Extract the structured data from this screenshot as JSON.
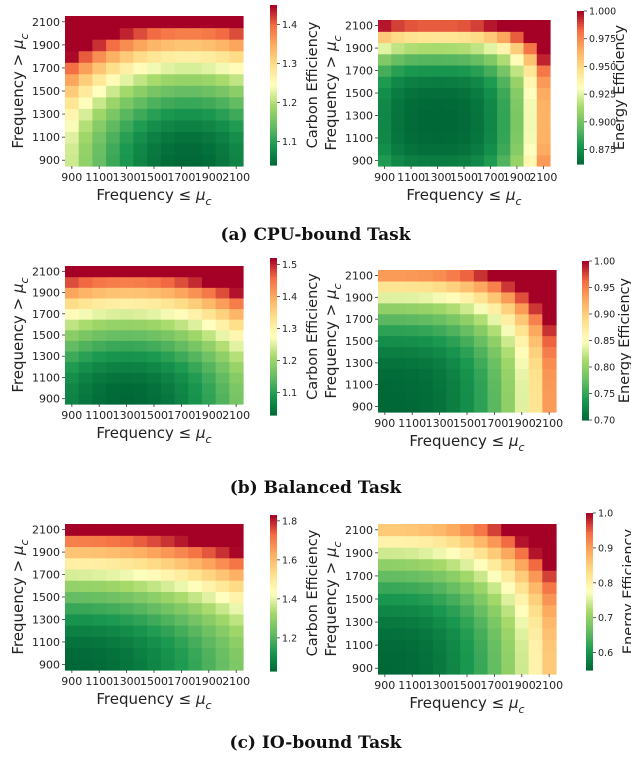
{
  "captions": [
    "(a) CPU-bound Task",
    "(b) Balanced Task",
    "(c) IO-bound Task"
  ],
  "chart_data": [
    {
      "type": "heatmap",
      "panel": "a-left",
      "xlabel": "Frequency $\\leq\\mu_c$",
      "ylabel": "Frequency > $\\mu_c$",
      "x": [
        900,
        1000,
        1100,
        1200,
        1300,
        1400,
        1500,
        1600,
        1700,
        1800,
        1900,
        2000,
        2100
      ],
      "y": [
        900,
        1000,
        1100,
        1200,
        1300,
        1400,
        1500,
        1600,
        1700,
        1800,
        1900,
        2000,
        2100
      ],
      "xtick_labels": [
        "900",
        "1100",
        "1300",
        "1500",
        "1700",
        "1900",
        "2100"
      ],
      "ytick_labels": [
        "900",
        "1100",
        "1300",
        "1500",
        "1700",
        "1900",
        "2100"
      ],
      "colorbar_label": "Carbon Efficiency",
      "colorbar_ticks": [
        "1.1",
        "1.2",
        "1.3",
        "1.4"
      ],
      "colormap": "RdYlGn_r",
      "value_range": [
        1.04,
        1.45
      ],
      "model": {
        "kind": "bowl",
        "cx": 1750,
        "cy": 900,
        "sx": 1300,
        "sy": 1200,
        "p": 2.0,
        "min": 1.04,
        "max": 1.45
      }
    },
    {
      "type": "heatmap",
      "panel": "a-right",
      "xlabel": "Frequency $\\leq\\mu_c$",
      "ylabel": "Frequency > $\\mu_c$",
      "x": [
        900,
        1000,
        1100,
        1200,
        1300,
        1400,
        1500,
        1600,
        1700,
        1800,
        1900,
        2000,
        2100
      ],
      "y": [
        900,
        1000,
        1100,
        1200,
        1300,
        1400,
        1500,
        1600,
        1700,
        1800,
        1900,
        2000,
        2100
      ],
      "xtick_labels": [
        "900",
        "1100",
        "1300",
        "1500",
        "1700",
        "1900",
        "2100"
      ],
      "ytick_labels": [
        "900",
        "1100",
        "1300",
        "1500",
        "1700",
        "1900",
        "2100"
      ],
      "colorbar_label": "Energy Efficiency",
      "colorbar_ticks": [
        "0.875",
        "0.900",
        "0.925",
        "0.950",
        "0.975",
        "1.000"
      ],
      "colormap": "RdYlGn_r",
      "value_range": [
        0.862,
        1.0
      ],
      "model": {
        "kind": "bowl",
        "cx": 1300,
        "cy": 1250,
        "sx": 880,
        "sy": 880,
        "p": 3.2,
        "min": 0.862,
        "max": 1.0
      }
    },
    {
      "type": "heatmap",
      "panel": "b-left",
      "xlabel": "Frequency $\\leq\\mu_c$",
      "ylabel": "Frequency > $\\mu_c$",
      "x": [
        900,
        1000,
        1100,
        1200,
        1300,
        1400,
        1500,
        1600,
        1700,
        1800,
        1900,
        2000,
        2100
      ],
      "y": [
        900,
        1000,
        1100,
        1200,
        1300,
        1400,
        1500,
        1600,
        1700,
        1800,
        1900,
        2000,
        2100
      ],
      "xtick_labels": [
        "900",
        "1100",
        "1300",
        "1500",
        "1700",
        "1900",
        "2100"
      ],
      "ytick_labels": [
        "900",
        "1100",
        "1300",
        "1500",
        "1700",
        "1900",
        "2100"
      ],
      "colorbar_label": "Carbon Efficiency",
      "colorbar_ticks": [
        "1.1",
        "1.2",
        "1.3",
        "1.4",
        "1.5"
      ],
      "colormap": "RdYlGn_r",
      "value_range": [
        1.03,
        1.52
      ],
      "model": {
        "kind": "bowl",
        "cx": 1300,
        "cy": 900,
        "sx": 1500,
        "sy": 1200,
        "p": 2.0,
        "min": 1.03,
        "max": 1.52
      }
    },
    {
      "type": "heatmap",
      "panel": "b-right",
      "xlabel": "Frequency $\\leq\\mu_c$",
      "ylabel": "Frequency > $\\mu_c$",
      "x": [
        900,
        1000,
        1100,
        1200,
        1300,
        1400,
        1500,
        1600,
        1700,
        1800,
        1900,
        2000,
        2100
      ],
      "y": [
        900,
        1000,
        1100,
        1200,
        1300,
        1400,
        1500,
        1600,
        1700,
        1800,
        1900,
        2000,
        2100
      ],
      "xtick_labels": [
        "900",
        "1100",
        "1300",
        "1500",
        "1700",
        "1900",
        "2100"
      ],
      "ytick_labels": [
        "900",
        "1100",
        "1300",
        "1500",
        "1700",
        "1900",
        "2100"
      ],
      "colorbar_label": "Energy Efficiency",
      "colorbar_ticks": [
        "0.70",
        "0.75",
        "0.80",
        "0.85",
        "0.90",
        "0.95",
        "1.00"
      ],
      "colormap": "RdYlGn_r",
      "value_range": [
        0.7,
        1.0
      ],
      "model": {
        "kind": "bowl",
        "cx": 900,
        "cy": 900,
        "sx": 1300,
        "sy": 1300,
        "p": 3.0,
        "min": 0.7,
        "max": 1.0
      }
    },
    {
      "type": "heatmap",
      "panel": "c-left",
      "xlabel": "Frequency $\\leq\\mu_c$",
      "ylabel": "Frequency > $\\mu_c$",
      "x": [
        900,
        1000,
        1100,
        1200,
        1300,
        1400,
        1500,
        1600,
        1700,
        1800,
        1900,
        2000,
        2100
      ],
      "y": [
        900,
        1000,
        1100,
        1200,
        1300,
        1400,
        1500,
        1600,
        1700,
        1800,
        1900,
        2000,
        2100
      ],
      "xtick_labels": [
        "900",
        "1100",
        "1300",
        "1500",
        "1700",
        "1900",
        "2100"
      ],
      "ytick_labels": [
        "900",
        "1100",
        "1300",
        "1500",
        "1700",
        "1900",
        "2100"
      ],
      "colorbar_label": "Carbon Efficiency",
      "colorbar_ticks": [
        "1.2",
        "1.4",
        "1.6",
        "1.8"
      ],
      "colormap": "RdYlGn_r",
      "value_range": [
        1.03,
        1.83
      ],
      "model": {
        "kind": "bowl",
        "cx": 900,
        "cy": 900,
        "sx": 2200,
        "sy": 1200,
        "p": 2.0,
        "min": 1.03,
        "max": 1.83
      }
    },
    {
      "type": "heatmap",
      "panel": "c-right",
      "xlabel": "Frequency $\\leq\\mu_c$",
      "ylabel": "Frequency > $\\mu_c$",
      "x": [
        900,
        1000,
        1100,
        1200,
        1300,
        1400,
        1500,
        1600,
        1700,
        1800,
        1900,
        2000,
        2100
      ],
      "y": [
        900,
        1000,
        1100,
        1200,
        1300,
        1400,
        1500,
        1600,
        1700,
        1800,
        1900,
        2000,
        2100
      ],
      "xtick_labels": [
        "900",
        "1100",
        "1300",
        "1500",
        "1700",
        "1900",
        "2100"
      ],
      "ytick_labels": [
        "900",
        "1100",
        "1300",
        "1500",
        "1700",
        "1900",
        "2100"
      ],
      "colorbar_label": "Energy Efficiency",
      "colorbar_ticks": [
        "0.6",
        "0.7",
        "0.8",
        "0.9",
        "1.0"
      ],
      "colormap": "RdYlGn_r",
      "value_range": [
        0.55,
        1.0
      ],
      "model": {
        "kind": "bowl",
        "cx": 900,
        "cy": 900,
        "sx": 1400,
        "sy": 1400,
        "p": 2.5,
        "min": 0.55,
        "max": 1.0
      }
    }
  ]
}
